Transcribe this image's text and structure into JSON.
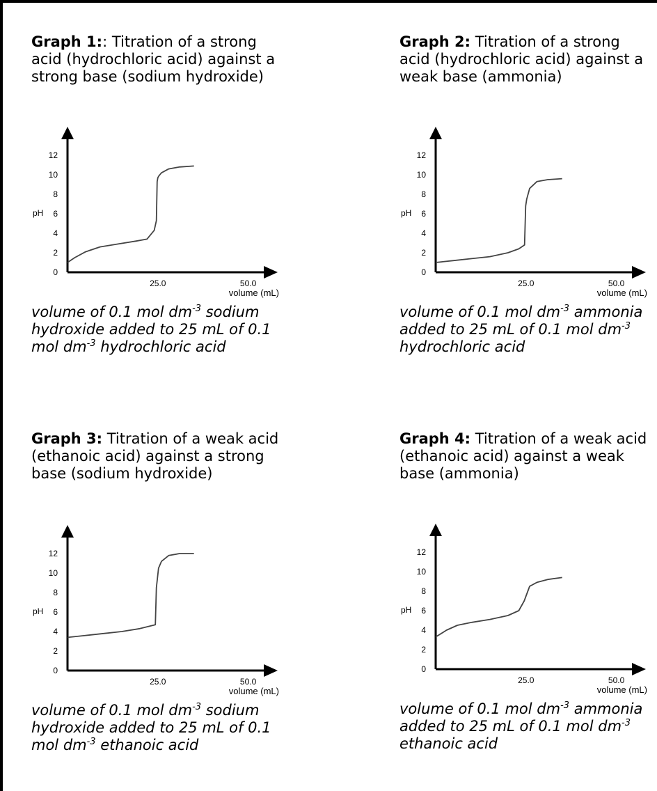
{
  "charts": [
    {
      "heading_bold": "Graph 1:",
      "heading_text": ": Titration of a strong acid (hydrochloric acid) against a strong base (sodium hydroxide)",
      "caption": [
        {
          "t": "volume of 0.1 mol dm"
        },
        {
          "sup": "-3"
        },
        {
          "t": " sodium hydroxide added to 25 mL of 0.1 mol dm"
        },
        {
          "sup": "-3"
        },
        {
          "t": " hydrochloric acid"
        }
      ]
    },
    {
      "heading_bold": "Graph 2:",
      "heading_text": " Titration of a strong acid (hydrochloric acid) against a weak base (ammonia)",
      "caption": [
        {
          "t": "volume of 0.1 mol dm"
        },
        {
          "sup": "-3"
        },
        {
          "t": " ammonia added to 25 mL of 0.1 mol dm"
        },
        {
          "sup": "-3"
        },
        {
          "t": " hydrochloric acid"
        }
      ]
    },
    {
      "heading_bold": "Graph 3:",
      "heading_text": " Titration of a weak acid (ethanoic acid) against a strong base (sodium hydroxide)",
      "caption": [
        {
          "t": "volume of 0.1 mol dm"
        },
        {
          "sup": "-3"
        },
        {
          "t": " sodium hydroxide added to 25 mL of 0.1 mol dm"
        },
        {
          "sup": "-3"
        },
        {
          "t": " ethanoic acid"
        }
      ]
    },
    {
      "heading_bold": "Graph 4:",
      "heading_text": " Titration of a weak acid (ethanoic acid) against a weak base  (ammonia)",
      "caption": [
        {
          "t": "volume of 0.1 mol dm"
        },
        {
          "sup": "-3"
        },
        {
          "t": " ammonia added to 25 mL of 0.1 mol dm"
        },
        {
          "sup": "-3"
        },
        {
          "t": " ethanoic acid"
        }
      ]
    }
  ],
  "chart_data": [
    {
      "type": "line",
      "ylabel": "pH",
      "xlabel": "volume (mL)",
      "x_ticks": [
        25.0,
        50.0
      ],
      "x_tick_labels": [
        "25.0",
        "50.0"
      ],
      "y_ticks": [
        0,
        2,
        4,
        6,
        8,
        10,
        12
      ],
      "xlim": [
        0,
        52
      ],
      "ylim": [
        0,
        13
      ],
      "x": [
        0,
        2,
        5,
        9,
        14,
        19,
        22,
        24,
        24.6,
        24.8,
        25,
        25.3,
        26,
        28,
        31,
        35
      ],
      "y": [
        1.0,
        1.5,
        2.1,
        2.6,
        2.9,
        3.2,
        3.4,
        4.3,
        5.3,
        9.3,
        9.7,
        9.9,
        10.2,
        10.6,
        10.8,
        10.9
      ]
    },
    {
      "type": "line",
      "ylabel": "pH",
      "xlabel": "volume (mL)",
      "x_ticks": [
        25.0,
        50.0
      ],
      "x_tick_labels": [
        "25.0",
        "50.0"
      ],
      "y_ticks": [
        0,
        2,
        4,
        6,
        8,
        10,
        12
      ],
      "xlim": [
        0,
        52
      ],
      "ylim": [
        0,
        13
      ],
      "x": [
        0,
        5,
        10,
        15,
        20,
        23,
        24.6,
        24.9,
        25.2,
        26,
        28,
        31,
        35
      ],
      "y": [
        1.0,
        1.2,
        1.4,
        1.6,
        2.0,
        2.4,
        2.8,
        6.8,
        7.5,
        8.6,
        9.3,
        9.5,
        9.6
      ]
    },
    {
      "type": "line",
      "ylabel": "pH",
      "xlabel": "volume (mL)",
      "x_ticks": [
        25.0,
        50.0
      ],
      "x_tick_labels": [
        "25.0",
        "50.0"
      ],
      "y_ticks": [
        0,
        2,
        4,
        6,
        8,
        10,
        12
      ],
      "xlim": [
        0,
        52
      ],
      "ylim": [
        0,
        13
      ],
      "x": [
        0,
        5,
        10,
        15,
        20,
        24.3,
        24.6,
        25.2,
        26,
        28,
        31,
        35
      ],
      "y": [
        3.4,
        3.6,
        3.8,
        4.0,
        4.3,
        4.7,
        8.5,
        10.5,
        11.2,
        11.8,
        12.0,
        12.0
      ]
    },
    {
      "type": "line",
      "ylabel": "pH",
      "xlabel": "volume (mL)",
      "x_ticks": [
        25.0,
        50.0
      ],
      "x_tick_labels": [
        "25.0",
        "50.0"
      ],
      "y_ticks": [
        0,
        2,
        4,
        6,
        8,
        10,
        12
      ],
      "xlim": [
        0,
        52
      ],
      "ylim": [
        0,
        13
      ],
      "x": [
        0,
        3,
        6,
        10,
        15,
        20,
        23,
        24.5,
        26,
        28,
        31,
        35
      ],
      "y": [
        3.3,
        4.0,
        4.5,
        4.8,
        5.1,
        5.5,
        6.0,
        7.0,
        8.5,
        8.9,
        9.2,
        9.4
      ]
    }
  ]
}
